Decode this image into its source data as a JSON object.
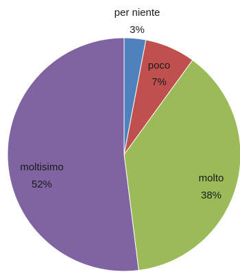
{
  "chart_data": {
    "type": "pie",
    "title": "",
    "categories": [
      "per niente",
      "poco",
      "molto",
      "moltisimo"
    ],
    "values": [
      3,
      7,
      38,
      52
    ],
    "percent_labels": [
      "3%",
      "7%",
      "38%",
      "52%"
    ],
    "colors": [
      "#4f81bd",
      "#c0504d",
      "#9bbb59",
      "#8064a2"
    ],
    "start": "top",
    "direction": "clockwise",
    "legend": "none"
  }
}
